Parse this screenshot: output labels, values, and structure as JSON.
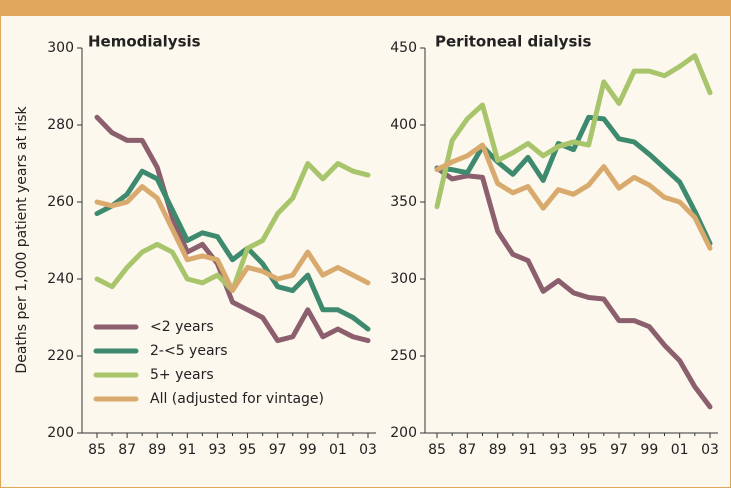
{
  "chart_data": [
    {
      "type": "line",
      "title": "Hemodialysis",
      "ylabel": "Deaths per 1,000 patient years at risk",
      "categories": [
        "85",
        null,
        "87",
        null,
        "89",
        null,
        "91",
        null,
        "93",
        null,
        "95",
        null,
        "97",
        null,
        "99",
        null,
        "01",
        null,
        "03"
      ],
      "ylim": [
        200,
        300
      ],
      "yticks": [
        200,
        220,
        240,
        260,
        280,
        300
      ],
      "legend": "lower-left",
      "series": [
        {
          "name": "<2 years",
          "color": "#8b5f6d",
          "values": [
            282,
            278,
            276,
            276,
            269,
            256,
            247,
            249,
            244,
            234,
            232,
            230,
            224,
            225,
            232,
            225,
            227,
            225,
            224
          ]
        },
        {
          "name": "2-<5 years",
          "color": "#3e8a6f",
          "values": [
            257,
            259,
            262,
            268,
            266,
            258,
            250,
            252,
            251,
            245,
            248,
            244,
            238,
            237,
            241,
            232,
            232,
            230,
            227
          ]
        },
        {
          "name": "5+ years",
          "color": "#a8c56c",
          "values": [
            240,
            238,
            243,
            247,
            249,
            247,
            240,
            239,
            241,
            237,
            248,
            250,
            257,
            261,
            270,
            266,
            270,
            268,
            267
          ]
        },
        {
          "name": "All (adjusted for vintage)",
          "color": "#d9aa6e",
          "values": [
            260,
            259,
            260,
            264,
            261,
            253,
            245,
            246,
            245,
            237,
            243,
            242,
            240,
            241,
            247,
            241,
            243,
            241,
            239
          ]
        }
      ]
    },
    {
      "type": "line",
      "title": "Peritoneal dialysis",
      "categories": [
        "85",
        null,
        "87",
        null,
        "89",
        null,
        "91",
        null,
        "93",
        null,
        "95",
        null,
        "97",
        null,
        "99",
        null,
        "01",
        null,
        "03"
      ],
      "ylim": [
        200,
        450
      ],
      "yticks": [
        200,
        250,
        300,
        350,
        400,
        450
      ],
      "series": [
        {
          "color": "#8b5f6d",
          "values": [
            372,
            365,
            367,
            366,
            331,
            316,
            312,
            292,
            299,
            291,
            288,
            287,
            273,
            273,
            269,
            257,
            247,
            230,
            217
          ]
        },
        {
          "color": "#3e8a6f",
          "values": [
            372,
            371,
            369,
            386,
            376,
            368,
            379,
            364,
            388,
            384,
            405,
            404,
            391,
            389,
            381,
            372,
            363,
            344,
            323
          ]
        },
        {
          "color": "#a8c56c",
          "values": [
            347,
            390,
            404,
            413,
            377,
            382,
            388,
            380,
            386,
            389,
            387,
            428,
            414,
            435,
            435,
            432,
            438,
            445,
            421
          ]
        },
        {
          "color": "#d9aa6e",
          "values": [
            371,
            376,
            380,
            387,
            362,
            356,
            360,
            346,
            358,
            355,
            361,
            373,
            359,
            366,
            361,
            353,
            350,
            340,
            320
          ]
        }
      ]
    }
  ]
}
